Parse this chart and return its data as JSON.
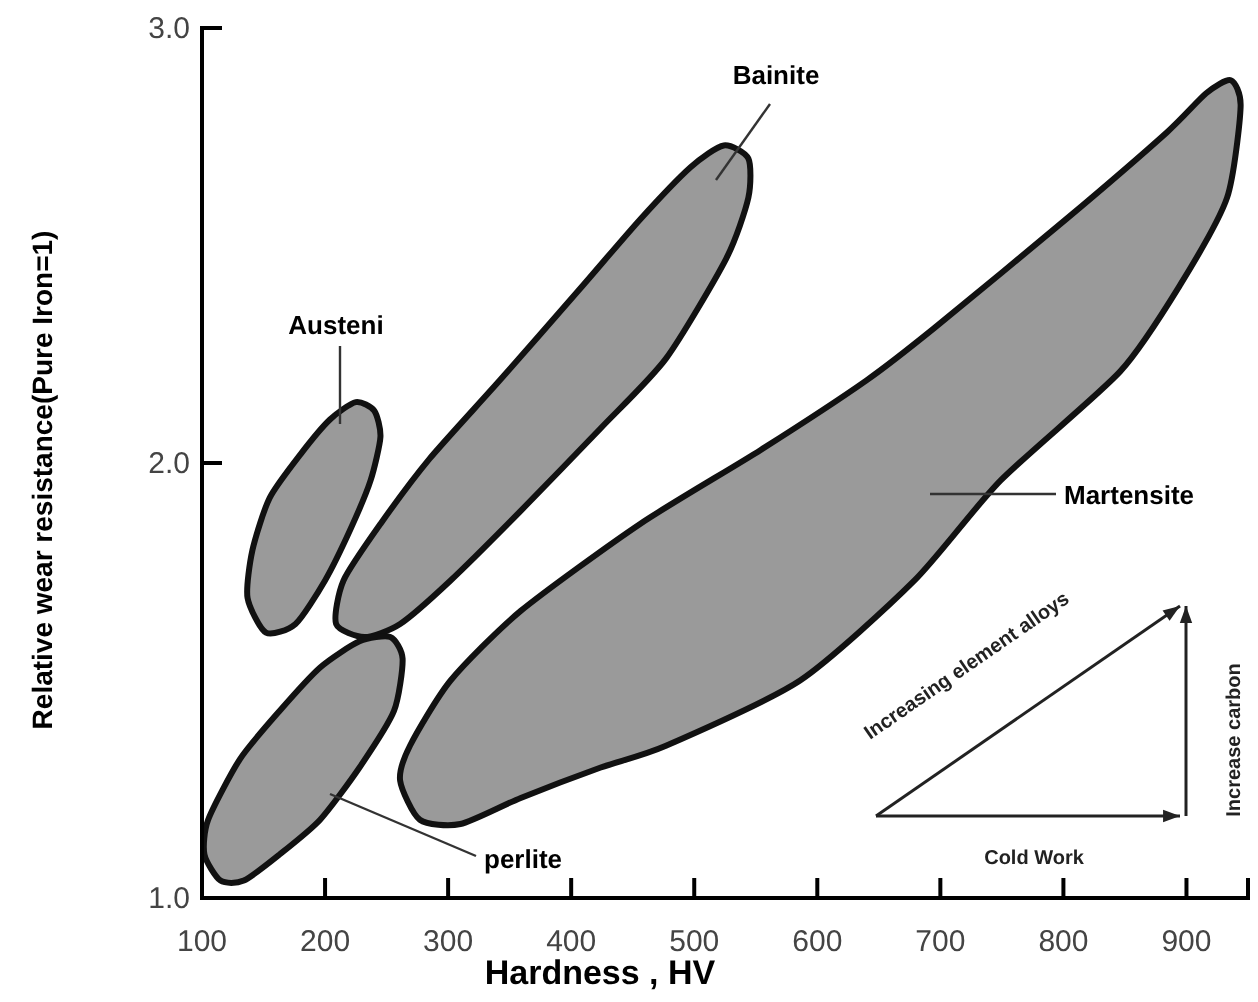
{
  "chart_data": {
    "type": "area",
    "xlabel": "Hardness , HV",
    "ylabel": "Relative wear resistance(Pure Iron=1)",
    "xlim": [
      100,
      950
    ],
    "ylim": [
      1,
      3
    ],
    "xticks": [
      100,
      200,
      300,
      400,
      500,
      600,
      700,
      800,
      900
    ],
    "yticks": [
      {
        "value": 1,
        "label": "1.0"
      },
      {
        "value": 2,
        "label": "2.0"
      },
      {
        "value": 3,
        "label": "3.0"
      }
    ],
    "grid": false,
    "legend": false,
    "marker": "none",
    "line_style": "solid",
    "series": [
      {
        "name": "Austeni",
        "color": "#9a9a9a",
        "x": [
          152,
          137,
          141,
          155,
          180,
          204,
          225,
          240,
          245,
          237,
          221,
          200,
          176
        ],
        "values": [
          1.61,
          1.69,
          1.8,
          1.92,
          2.02,
          2.1,
          2.14,
          2.12,
          2.06,
          1.96,
          1.85,
          1.73,
          1.63
        ]
      },
      {
        "name": "Bainite",
        "color": "#9a9a9a",
        "x": [
          209,
          215,
          245,
          285,
          342,
          407,
          456,
          497,
          524,
          544,
          544,
          526,
          477,
          424,
          359,
          302,
          261,
          232
        ],
        "values": [
          1.63,
          1.73,
          1.86,
          2.01,
          2.19,
          2.4,
          2.56,
          2.68,
          2.73,
          2.7,
          2.61,
          2.47,
          2.24,
          2.08,
          1.89,
          1.73,
          1.63,
          1.6
        ]
      },
      {
        "name": "perlite",
        "color": "#9a9a9a",
        "x": [
          115,
          102,
          105,
          131,
          163,
          196,
          228,
          253,
          263,
          256,
          228,
          196,
          163,
          134
        ],
        "values": [
          1.04,
          1.1,
          1.18,
          1.32,
          1.43,
          1.53,
          1.59,
          1.6,
          1.55,
          1.43,
          1.3,
          1.18,
          1.1,
          1.04
        ]
      },
      {
        "name": "Martensite",
        "color": "#9a9a9a",
        "x": [
          261,
          269,
          302,
          359,
          456,
          554,
          640,
          695,
          802,
          884,
          916,
          936,
          944,
          933,
          895,
          846,
          749,
          679,
          586,
          477,
          424,
          359,
          310,
          277
        ],
        "values": [
          1.27,
          1.35,
          1.5,
          1.66,
          1.86,
          2.03,
          2.19,
          2.31,
          2.56,
          2.76,
          2.85,
          2.88,
          2.82,
          2.61,
          2.41,
          2.21,
          1.96,
          1.73,
          1.5,
          1.35,
          1.3,
          1.23,
          1.17,
          1.18
        ]
      }
    ],
    "annotations": [
      "Increasing element alloys",
      "Cold Work",
      "Increase carbon"
    ]
  }
}
